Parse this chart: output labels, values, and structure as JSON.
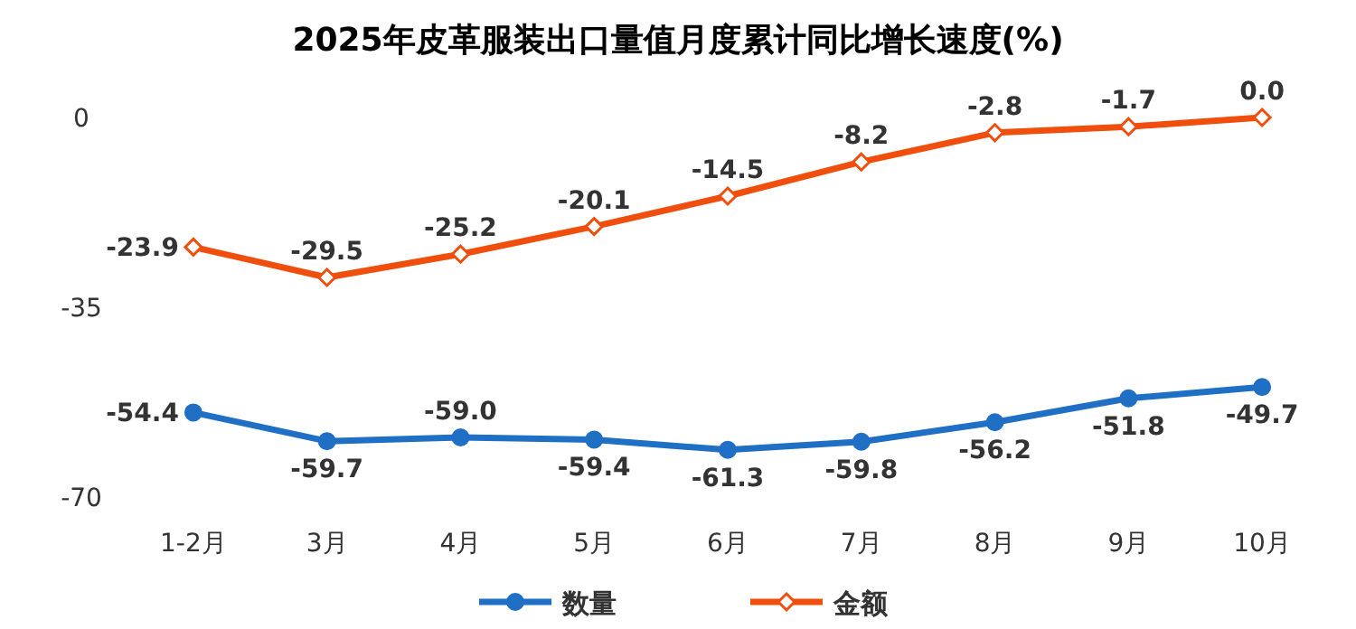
{
  "chart_data": {
    "type": "line",
    "title": "2025年皮革服装出口量值月度累计同比增长速度(%)",
    "categories": [
      "1-2月",
      "3月",
      "4月",
      "5月",
      "6月",
      "7月",
      "8月",
      "9月",
      "10月"
    ],
    "series": [
      {
        "name": "数量",
        "color": "#1f6fc5",
        "marker": "circle",
        "values": [
          -54.4,
          -59.7,
          -59.0,
          -59.4,
          -61.3,
          -59.8,
          -56.2,
          -51.8,
          -49.7
        ],
        "value_labels": [
          "-54.4",
          "-59.7",
          "-59.0",
          "-59.4",
          "-61.3",
          "-59.8",
          "-56.2",
          "-51.8",
          "-49.7"
        ]
      },
      {
        "name": "金额",
        "color": "#f04e0c",
        "marker": "diamond",
        "values": [
          -23.9,
          -29.5,
          -25.2,
          -20.1,
          -14.5,
          -8.2,
          -2.8,
          -1.7,
          0.0
        ],
        "value_labels": [
          "-23.9",
          "-29.5",
          "-25.2",
          "-20.1",
          "-14.5",
          "-8.2",
          "-2.8",
          "-1.7",
          "0.0"
        ]
      }
    ],
    "ylim": [
      -70,
      0
    ],
    "yticks": [
      0,
      -35,
      -70
    ],
    "grid": false,
    "legend": "bottom",
    "line_style": "solid"
  }
}
